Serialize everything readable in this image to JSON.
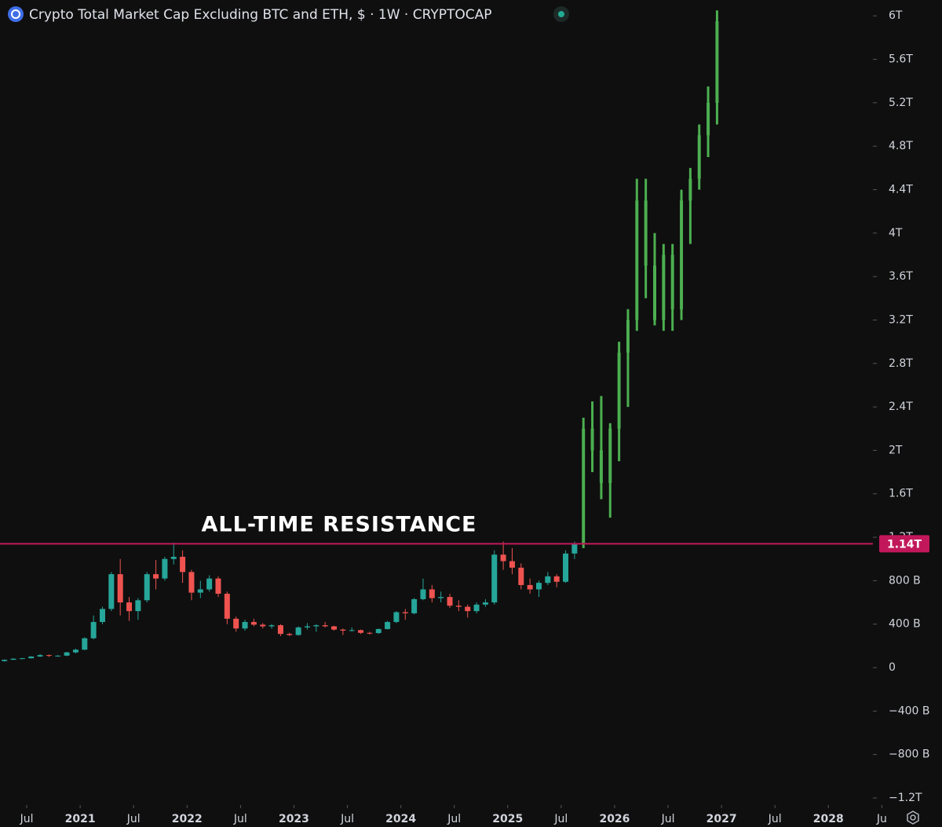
{
  "chart_data": {
    "type": "candlestick",
    "title": "Crypto Total Market Cap Excluding BTC and ETH, $ · 1W · CRYPTOCAP",
    "annotation": "ALL-TIME RESISTANCE",
    "resistance": {
      "value": 1140,
      "label": "1.14T",
      "color": "#c2185b"
    },
    "xlim": [
      "2020-04",
      "2028-06"
    ],
    "xticks": [
      {
        "value": "2020-07",
        "label": "Jul"
      },
      {
        "value": "2021-01",
        "label": "2021"
      },
      {
        "value": "2021-07",
        "label": "Jul"
      },
      {
        "value": "2022-01",
        "label": "2022"
      },
      {
        "value": "2022-07",
        "label": "Jul"
      },
      {
        "value": "2023-01",
        "label": "2023"
      },
      {
        "value": "2023-07",
        "label": "Jul"
      },
      {
        "value": "2024-01",
        "label": "2024"
      },
      {
        "value": "2024-07",
        "label": "Jul"
      },
      {
        "value": "2025-01",
        "label": "2025"
      },
      {
        "value": "2025-07",
        "label": "Jul"
      },
      {
        "value": "2026-01",
        "label": "2026"
      },
      {
        "value": "2026-07",
        "label": "Jul"
      },
      {
        "value": "2027-01",
        "label": "2027"
      },
      {
        "value": "2027-07",
        "label": "Jul"
      },
      {
        "value": "2028-01",
        "label": "2028"
      },
      {
        "value": "2028-07",
        "label": "Ju"
      }
    ],
    "ylim": [
      -1265,
      6146
    ],
    "yticks": [
      {
        "value": 6000,
        "label": "6T"
      },
      {
        "value": 5600,
        "label": "5.6T"
      },
      {
        "value": 5200,
        "label": "5.2T"
      },
      {
        "value": 4800,
        "label": "4.8T"
      },
      {
        "value": 4400,
        "label": "4.4T"
      },
      {
        "value": 4000,
        "label": "4T"
      },
      {
        "value": 3600,
        "label": "3.6T"
      },
      {
        "value": 3200,
        "label": "3.2T"
      },
      {
        "value": 2800,
        "label": "2.8T"
      },
      {
        "value": 2400,
        "label": "2.4T"
      },
      {
        "value": 2000,
        "label": "2T"
      },
      {
        "value": 1600,
        "label": "1.6T"
      },
      {
        "value": 1200,
        "label": "1.2T"
      },
      {
        "value": 800,
        "label": "800 B"
      },
      {
        "value": 400,
        "label": "400 B"
      },
      0,
      {
        "value": -400,
        "label": "−400 B"
      },
      {
        "value": -800,
        "label": "−800 B"
      },
      {
        "value": -1200,
        "label": "−1.2T"
      }
    ],
    "series": [
      {
        "up_color": "#26a69a",
        "down_color": "#ef5350",
        "x": [
          "2020-04",
          "2020-05",
          "2020-06",
          "2020-07",
          "2020-08",
          "2020-09",
          "2020-10",
          "2020-11",
          "2020-12",
          "2021-01",
          "2021-02",
          "2021-03",
          "2021-04",
          "2021-05",
          "2021-06",
          "2021-07",
          "2021-08",
          "2021-09",
          "2021-10",
          "2021-11",
          "2021-12",
          "2022-01",
          "2022-02",
          "2022-03",
          "2022-04",
          "2022-05",
          "2022-06",
          "2022-07",
          "2022-08",
          "2022-09",
          "2022-10",
          "2022-11",
          "2022-12",
          "2023-01",
          "2023-02",
          "2023-03",
          "2023-04",
          "2023-05",
          "2023-06",
          "2023-07",
          "2023-08",
          "2023-09",
          "2023-10",
          "2023-11",
          "2023-12",
          "2024-01",
          "2024-02",
          "2024-03",
          "2024-04",
          "2024-05",
          "2024-06",
          "2024-07",
          "2024-08",
          "2024-09",
          "2024-10",
          "2024-11",
          "2024-12",
          "2025-01",
          "2025-02",
          "2025-03",
          "2025-04",
          "2025-05",
          "2025-06",
          "2025-07",
          "2025-08"
        ],
        "open": [
          60,
          72,
          82,
          86,
          102,
          115,
          108,
          110,
          140,
          165,
          270,
          420,
          540,
          860,
          600,
          520,
          620,
          860,
          820,
          1000,
          1020,
          880,
          690,
          720,
          820,
          680,
          450,
          360,
          420,
          395,
          380,
          390,
          310,
          300,
          370,
          380,
          390,
          380,
          350,
          340,
          345,
          320,
          318,
          355,
          420,
          510,
          500,
          630,
          720,
          640,
          650,
          570,
          560,
          520,
          580,
          600,
          1040,
          980,
          920,
          760,
          720,
          780,
          840,
          790,
          1050
        ],
        "high": [
          75,
          85,
          90,
          105,
          125,
          120,
          115,
          145,
          175,
          280,
          480,
          560,
          880,
          1000,
          650,
          640,
          880,
          990,
          1020,
          1150,
          1080,
          900,
          800,
          850,
          840,
          700,
          470,
          440,
          450,
          410,
          400,
          400,
          320,
          380,
          410,
          400,
          420,
          385,
          360,
          370,
          350,
          330,
          360,
          430,
          520,
          540,
          640,
          820,
          760,
          700,
          680,
          620,
          580,
          600,
          630,
          1080,
          1160,
          1100,
          960,
          820,
          800,
          880,
          860,
          1080,
          1160
        ],
        "low": [
          55,
          70,
          78,
          84,
          98,
          98,
          100,
          105,
          130,
          160,
          260,
          400,
          520,
          480,
          430,
          440,
          600,
          720,
          800,
          950,
          780,
          620,
          640,
          700,
          650,
          400,
          330,
          340,
          380,
          360,
          360,
          290,
          290,
          295,
          350,
          330,
          370,
          340,
          300,
          330,
          310,
          305,
          310,
          350,
          410,
          440,
          490,
          620,
          600,
          600,
          550,
          520,
          460,
          500,
          560,
          580,
          900,
          860,
          720,
          680,
          650,
          760,
          740,
          780,
          1000
        ],
        "close": [
          72,
          82,
          86,
          102,
          115,
          108,
          110,
          140,
          165,
          270,
          420,
          540,
          860,
          600,
          520,
          620,
          860,
          820,
          1000,
          1020,
          880,
          690,
          720,
          820,
          680,
          450,
          360,
          420,
          395,
          380,
          390,
          310,
          300,
          370,
          380,
          390,
          380,
          350,
          340,
          345,
          320,
          318,
          355,
          420,
          510,
          500,
          630,
          720,
          640,
          650,
          570,
          560,
          520,
          580,
          600,
          1040,
          980,
          920,
          760,
          720,
          780,
          840,
          790,
          1050,
          1140
        ]
      },
      {
        "color": "#4caf50",
        "x": [
          "2025-09",
          "2025-10",
          "2025-11",
          "2025-12",
          "2026-01",
          "2026-02",
          "2026-03",
          "2026-04",
          "2026-05",
          "2026-06",
          "2026-07",
          "2026-08",
          "2026-09",
          "2026-10",
          "2026-11",
          "2026-12"
        ],
        "open": [
          1140,
          2200,
          2000,
          1700,
          2200,
          2900,
          3200,
          4300,
          3700,
          3200,
          3800,
          3300,
          4300,
          4500,
          4900,
          5200
        ],
        "high": [
          2300,
          2450,
          2500,
          2250,
          3000,
          3300,
          4500,
          4500,
          4000,
          3900,
          3900,
          4400,
          4600,
          5000,
          5350,
          6050
        ],
        "low": [
          1100,
          1800,
          1550,
          1380,
          1900,
          2400,
          3100,
          3400,
          3150,
          3100,
          3100,
          3200,
          3900,
          4400,
          4700,
          5000
        ],
        "close": [
          2200,
          2000,
          1700,
          2200,
          2900,
          3200,
          4300,
          3700,
          3200,
          3800,
          3300,
          4300,
          4500,
          4900,
          5200,
          5950
        ]
      }
    ]
  }
}
